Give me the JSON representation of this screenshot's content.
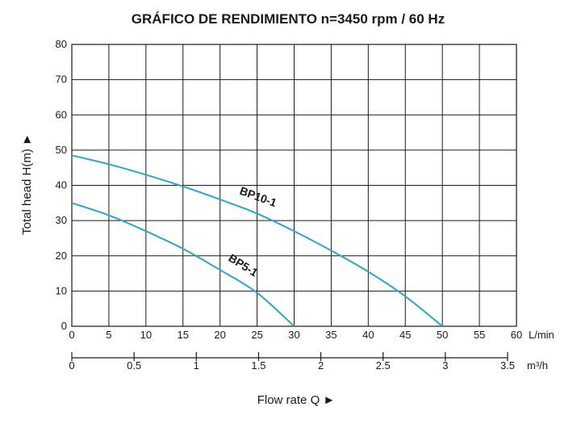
{
  "chart_data": {
    "type": "line",
    "title": "GRÁFICO DE RENDIMIENTO n=3450 rpm / 60 Hz",
    "xlabel": "Flow rate  Q ►",
    "ylabel": "Total  head H(m)  ►",
    "x_unit": "L/min",
    "secondary_x_unit": "m³/h",
    "xlim": [
      0,
      60
    ],
    "ylim": [
      0,
      80
    ],
    "x_ticks": [
      "0",
      "5",
      "10",
      "15",
      "20",
      "25",
      "30",
      "35",
      "40",
      "45",
      "50",
      "55",
      "60"
    ],
    "y_ticks": [
      "0",
      "10",
      "20",
      "30",
      "40",
      "50",
      "60",
      "70",
      "80"
    ],
    "secondary_x_ticks": [
      {
        "label": "0",
        "value": 0
      },
      {
        "label": "0.5",
        "value": 0.5
      },
      {
        "label": "1",
        "value": 1
      },
      {
        "label": "1.5",
        "value": 1.5
      },
      {
        "label": "2",
        "value": 2
      },
      {
        "label": "2.5",
        "value": 2.5
      },
      {
        "label": "3",
        "value": 3
      },
      {
        "label": "3.5",
        "value": 3.5
      }
    ],
    "grid": true,
    "series": [
      {
        "name": "BP10-1",
        "color": "#29a6c9",
        "x": [
          0,
          5,
          10,
          15,
          20,
          25,
          30,
          35,
          40,
          45,
          50
        ],
        "y": [
          48.5,
          46,
          43,
          39.7,
          36,
          32,
          27,
          21.5,
          15.5,
          8.5,
          0
        ]
      },
      {
        "name": "BP5-1",
        "color": "#29a6c9",
        "x": [
          0,
          5,
          10,
          15,
          20,
          25,
          30
        ],
        "y": [
          35,
          31.5,
          27,
          22,
          16,
          9.5,
          0
        ]
      }
    ]
  }
}
